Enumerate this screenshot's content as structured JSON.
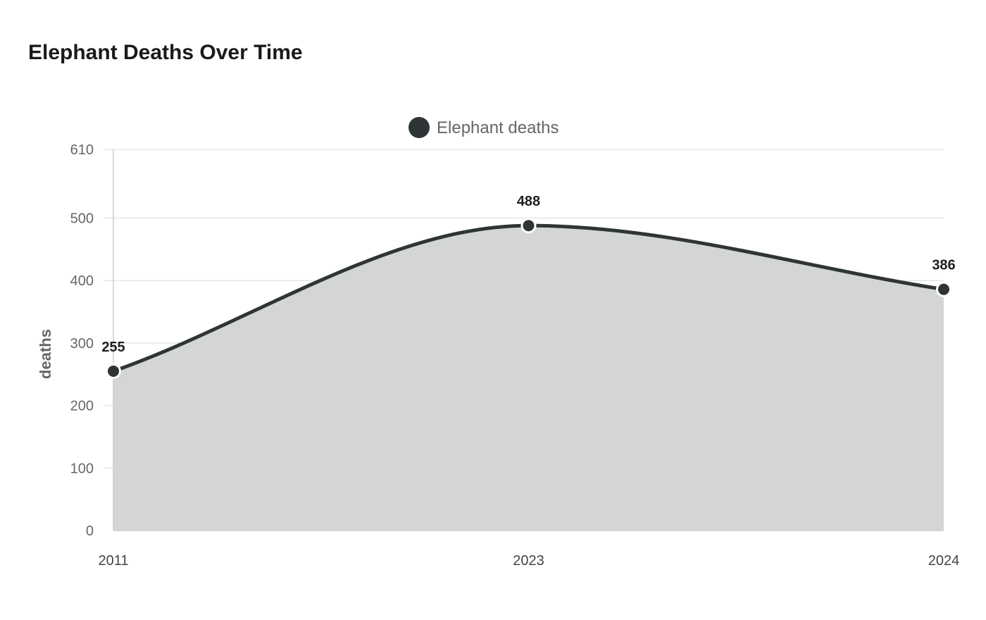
{
  "chart_data": {
    "type": "area",
    "title": "Elephant Deaths Over Time",
    "xlabel": "",
    "ylabel": "deaths",
    "categories": [
      "2011",
      "2023",
      "2024"
    ],
    "series": [
      {
        "name": "Elephant deaths",
        "values": [
          255,
          488,
          386
        ]
      }
    ],
    "ylim": [
      0,
      610
    ],
    "yticks": [
      0,
      100,
      200,
      300,
      400,
      500,
      610
    ],
    "grid": true,
    "legend_position": "top-center",
    "colors": {
      "line": "#2f3537",
      "fill": "#d4d6d5",
      "grid": "#e6e6e6",
      "axis": "#cccccc"
    }
  }
}
